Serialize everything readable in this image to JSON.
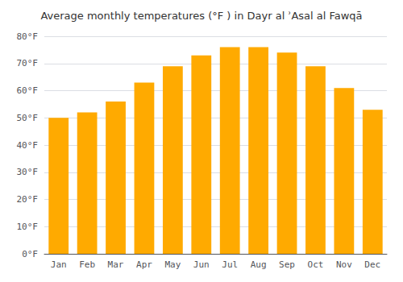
{
  "chart_data": {
    "type": "bar",
    "title": "Average monthly temperatures (°F ) in Dayr al ʾAsal al Fawqā",
    "categories": [
      "Jan",
      "Feb",
      "Mar",
      "Apr",
      "May",
      "Jun",
      "Jul",
      "Aug",
      "Sep",
      "Oct",
      "Nov",
      "Dec"
    ],
    "values": [
      50,
      52,
      56,
      63,
      69,
      73,
      76,
      76,
      74,
      69,
      61,
      53
    ],
    "color": "#FFAA00",
    "ylim": [
      0,
      80
    ],
    "yticks": [
      {
        "value": 0,
        "label": "0°F"
      },
      {
        "value": 10,
        "label": "10°F"
      },
      {
        "value": 20,
        "label": "20°F"
      },
      {
        "value": 30,
        "label": "30°F"
      },
      {
        "value": 40,
        "label": "40°F"
      },
      {
        "value": 50,
        "label": "50°F"
      },
      {
        "value": 60,
        "label": "60°F"
      },
      {
        "value": 70,
        "label": "70°F"
      },
      {
        "value": 80,
        "label": "80°F"
      }
    ],
    "grid": true
  }
}
